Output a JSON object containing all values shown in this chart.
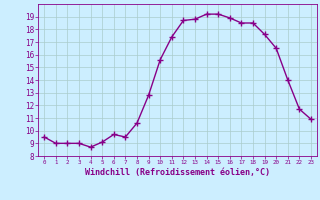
{
  "x": [
    0,
    1,
    2,
    3,
    4,
    5,
    6,
    7,
    8,
    9,
    10,
    11,
    12,
    13,
    14,
    15,
    16,
    17,
    18,
    19,
    20,
    21,
    22,
    23
  ],
  "y": [
    9.5,
    9.0,
    9.0,
    9.0,
    8.7,
    9.1,
    9.7,
    9.5,
    10.6,
    12.8,
    15.6,
    17.4,
    18.7,
    18.8,
    19.2,
    19.2,
    18.9,
    18.5,
    18.5,
    17.6,
    16.5,
    14.0,
    11.7,
    10.9
  ],
  "line_color": "#880088",
  "marker": "+",
  "markersize": 4,
  "linewidth": 1.0,
  "xlabel": "Windchill (Refroidissement éolien,°C)",
  "background_color": "#cceeff",
  "grid_color": "#aacccc",
  "tick_color": "#880088",
  "label_color": "#880088",
  "ylim": [
    8,
    20
  ],
  "xlim": [
    -0.5,
    23.5
  ],
  "yticks": [
    8,
    9,
    10,
    11,
    12,
    13,
    14,
    15,
    16,
    17,
    18,
    19
  ],
  "xticks": [
    0,
    1,
    2,
    3,
    4,
    5,
    6,
    7,
    8,
    9,
    10,
    11,
    12,
    13,
    14,
    15,
    16,
    17,
    18,
    19,
    20,
    21,
    22,
    23
  ],
  "ytick_fontsize": 5.5,
  "xtick_fontsize": 4.2,
  "xlabel_fontsize": 6.0
}
